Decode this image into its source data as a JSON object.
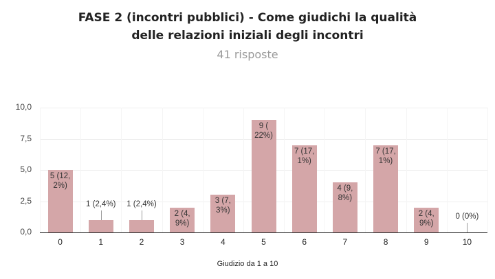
{
  "header": {
    "title_line1": "FASE 2 (incontri pubblici) - Come giudichi la qualità",
    "title_line2": "delle relazioni iniziali degli incontri",
    "subtitle": "41 risposte"
  },
  "chart_data": {
    "type": "bar",
    "title": "FASE 2 (incontri pubblici) - Come giudichi la qualità delle relazioni iniziali degli incontri",
    "subtitle": "41 risposte",
    "xlabel": "Giudizio da 1 a 10",
    "ylabel": "",
    "categories": [
      "0",
      "1",
      "2",
      "3",
      "4",
      "5",
      "6",
      "7",
      "8",
      "9",
      "10"
    ],
    "values": [
      5,
      1,
      1,
      2,
      3,
      9,
      7,
      4,
      7,
      2,
      0
    ],
    "data_labels": [
      "5 (12,2%)",
      "1 (2,4%)",
      "1 (2,4%)",
      "2 (4,9%)",
      "3 (7,3%)",
      "9 (22%)",
      "7 (17,1%)",
      "4 (9,8%)",
      "7 (17,1%)",
      "2 (4,9%)",
      "0 (0%)"
    ],
    "label_lines": [
      [
        "5 (12,",
        "2%)"
      ],
      [
        "1 (2,4%)"
      ],
      [
        "1 (2,4%)"
      ],
      [
        "2 (4,",
        "9%)"
      ],
      [
        "3 (7,",
        "3%)"
      ],
      [
        "9 (",
        "22%)"
      ],
      [
        "7 (17,",
        "1%)"
      ],
      [
        "4 (9,",
        "8%)"
      ],
      [
        "7 (17,",
        "1%)"
      ],
      [
        "2 (4,",
        "9%)"
      ],
      [
        "0 (0%)"
      ]
    ],
    "yticks": [
      "0,0",
      "2,5",
      "5,0",
      "7,5",
      "10,0"
    ],
    "ylim": [
      0,
      10
    ],
    "grid": true,
    "legend": "none",
    "bar_color": "#d4a6a8"
  }
}
